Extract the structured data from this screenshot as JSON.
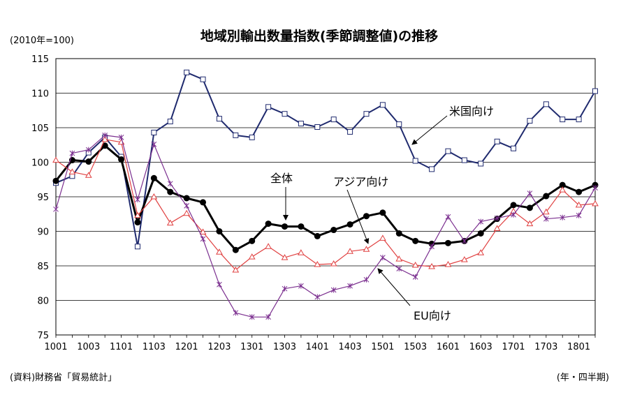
{
  "chart_data": {
    "type": "line",
    "title": "地域別輸出数量指数(季節調整値)の推移",
    "unit_note": "(2010年=100)",
    "source": "(資料)財務省「貿易統計」",
    "xlabel": "(年・四半期)",
    "ylabel": "",
    "ylim": [
      75,
      115
    ],
    "yticks": [
      75,
      80,
      85,
      90,
      95,
      100,
      105,
      110,
      115
    ],
    "grid": true,
    "x": [
      "1001",
      "1002",
      "1003",
      "1004",
      "1101",
      "1102",
      "1103",
      "1104",
      "1201",
      "1202",
      "1203",
      "1204",
      "1301",
      "1302",
      "1303",
      "1304",
      "1401",
      "1402",
      "1403",
      "1404",
      "1501",
      "1502",
      "1503",
      "1504",
      "1601",
      "1602",
      "1603",
      "1604",
      "1701",
      "1702",
      "1703",
      "1704",
      "1801",
      "1802"
    ],
    "x_tick_labels": [
      "1001",
      "1003",
      "1101",
      "1103",
      "1201",
      "1203",
      "1301",
      "1303",
      "1401",
      "1403",
      "1501",
      "1503",
      "1601",
      "1603",
      "1701",
      "1703",
      "1801"
    ],
    "series": [
      {
        "name": "米国向け",
        "color": "#1f2a6e",
        "marker": "square",
        "values": [
          97.0,
          98.0,
          101.4,
          103.6,
          100.8,
          87.8,
          104.3,
          105.9,
          113.0,
          112.0,
          106.3,
          103.9,
          103.6,
          108.0,
          107.0,
          105.6,
          105.1,
          106.2,
          104.4,
          107.0,
          108.3,
          105.5,
          100.2,
          99.0,
          101.6,
          100.3,
          99.8,
          103.0,
          102.0,
          106.0,
          108.4,
          106.2,
          106.2,
          110.3
        ]
      },
      {
        "name": "全体",
        "color": "#000000",
        "marker": "circle",
        "values": [
          97.3,
          100.3,
          100.1,
          102.4,
          100.4,
          91.3,
          97.7,
          95.7,
          94.8,
          94.2,
          90.0,
          87.3,
          88.6,
          91.1,
          90.7,
          90.7,
          89.3,
          90.2,
          91.0,
          92.2,
          92.7,
          89.7,
          88.6,
          88.2,
          88.3,
          88.6,
          89.7,
          91.8,
          93.8,
          93.4,
          95.1,
          96.7,
          95.7,
          96.7
        ]
      },
      {
        "name": "アジア向け",
        "color": "#e04040",
        "marker": "triangle",
        "values": [
          100.3,
          98.6,
          98.1,
          103.3,
          102.9,
          92.3,
          95.0,
          91.2,
          92.6,
          89.9,
          87.0,
          84.4,
          86.3,
          87.8,
          86.2,
          86.9,
          85.2,
          85.3,
          87.1,
          87.4,
          89.0,
          86.0,
          85.1,
          84.9,
          85.2,
          85.9,
          86.9,
          90.4,
          92.9,
          91.1,
          92.8,
          96.0,
          93.8,
          94.0
        ]
      },
      {
        "name": "EU向け",
        "color": "#7b2f8f",
        "marker": "x",
        "values": [
          93.2,
          101.3,
          101.8,
          103.9,
          103.6,
          94.6,
          102.6,
          96.9,
          93.7,
          88.9,
          82.3,
          78.2,
          77.6,
          77.6,
          81.7,
          82.1,
          80.5,
          81.5,
          82.1,
          83.0,
          86.2,
          84.6,
          83.4,
          87.8,
          92.1,
          88.6,
          91.4,
          91.9,
          92.4,
          95.5,
          91.8,
          92.0,
          92.3,
          96.3
        ]
      }
    ],
    "annotations": [
      {
        "text": "米国向け",
        "series": "米国向け"
      },
      {
        "text": "全体",
        "series": "全体"
      },
      {
        "text": "アジア向け",
        "series": "アジア向け"
      },
      {
        "text": "EU向け",
        "series": "EU向け"
      }
    ]
  }
}
